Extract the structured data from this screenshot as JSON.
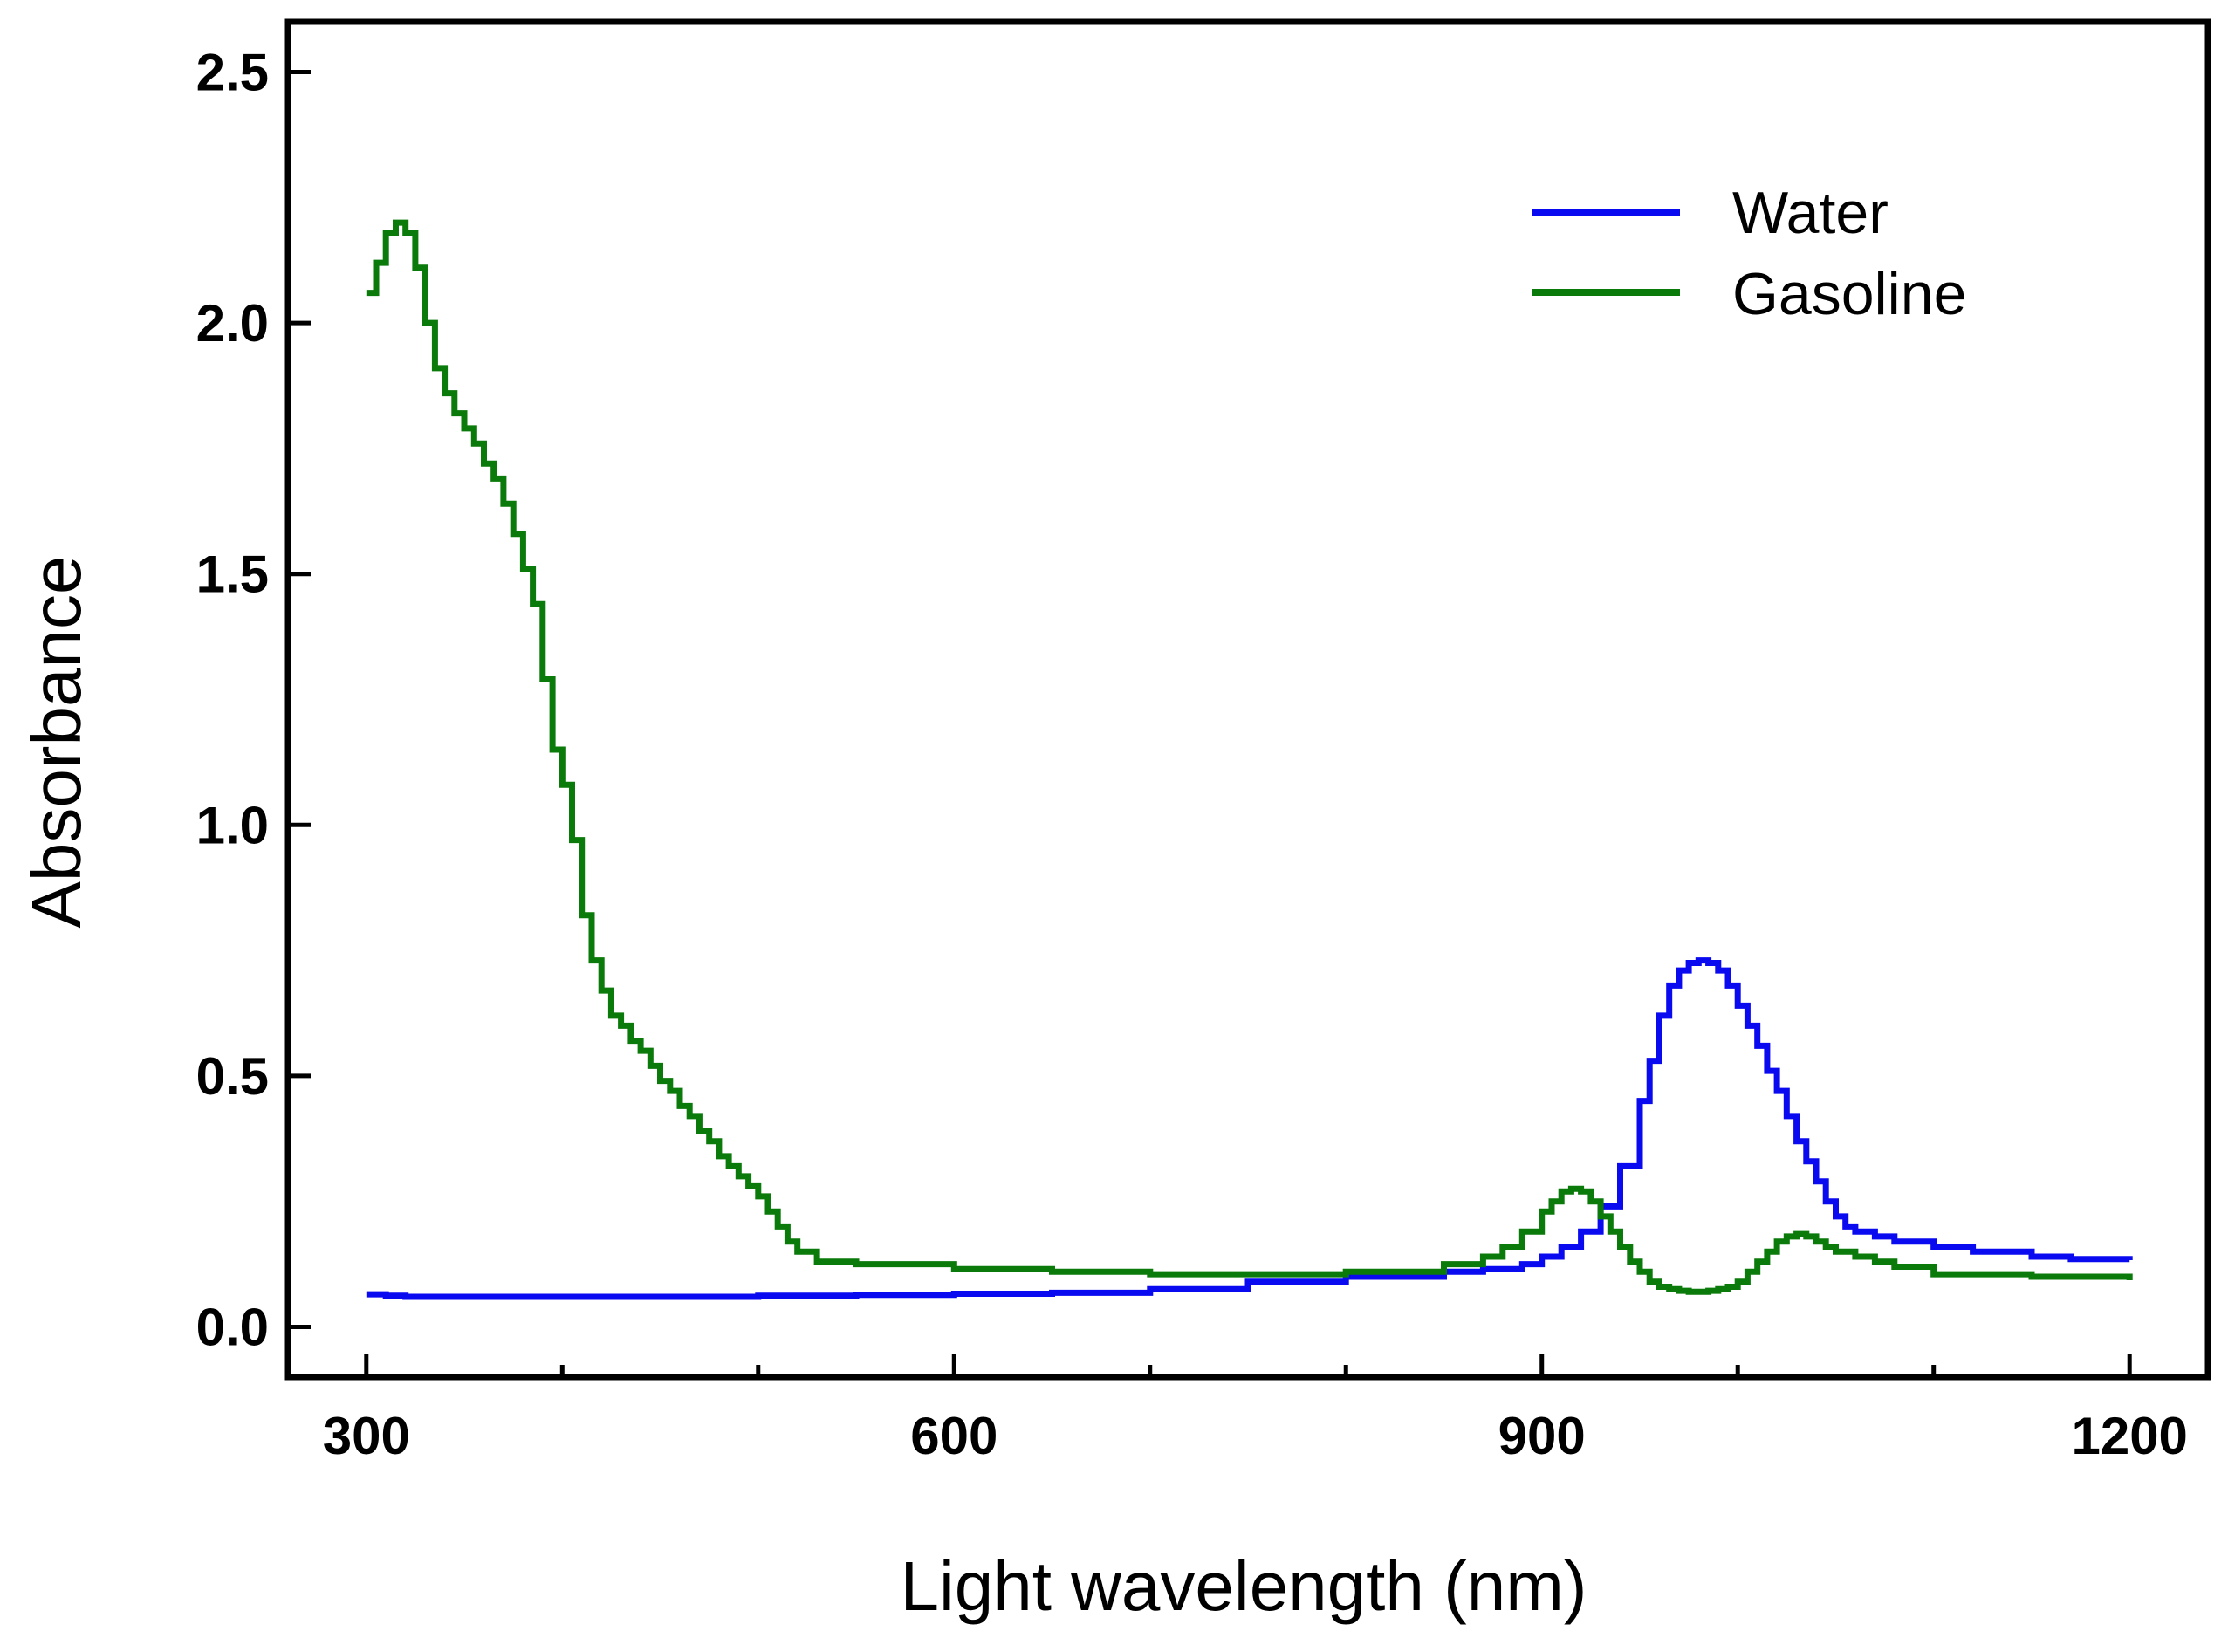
{
  "chart_data": {
    "type": "line",
    "title": "",
    "xlabel": "Light wavelength (nm)",
    "ylabel": "Absorbance",
    "xlim": [
      260,
      1240
    ],
    "ylim": [
      -0.1,
      2.6
    ],
    "xticks": [
      300,
      600,
      900,
      1200
    ],
    "xtick_labels": [
      "300",
      "600",
      "900",
      "1200"
    ],
    "x_minor_ticks": [
      400,
      500,
      700,
      800,
      1000,
      1100
    ],
    "yticks": [
      0.0,
      0.5,
      1.0,
      1.5,
      2.0,
      2.5
    ],
    "ytick_labels": [
      "0.0",
      "0.5",
      "1.0",
      "1.5",
      "2.0",
      "2.5"
    ],
    "grid": false,
    "legend_position": "top-right",
    "series": [
      {
        "name": "Water",
        "color": "#0a0af0",
        "x": [
          300,
          310,
          320,
          350,
          400,
          450,
          500,
          550,
          600,
          650,
          700,
          750,
          800,
          850,
          870,
          890,
          900,
          910,
          920,
          930,
          940,
          950,
          955,
          960,
          965,
          970,
          975,
          980,
          985,
          990,
          995,
          1000,
          1005,
          1010,
          1015,
          1020,
          1025,
          1030,
          1035,
          1040,
          1045,
          1050,
          1055,
          1060,
          1070,
          1080,
          1100,
          1120,
          1150,
          1170,
          1200
        ],
        "values": [
          0.065,
          0.062,
          0.06,
          0.06,
          0.06,
          0.06,
          0.062,
          0.064,
          0.066,
          0.068,
          0.075,
          0.09,
          0.1,
          0.11,
          0.115,
          0.125,
          0.14,
          0.16,
          0.19,
          0.24,
          0.32,
          0.45,
          0.53,
          0.62,
          0.68,
          0.71,
          0.725,
          0.73,
          0.725,
          0.71,
          0.68,
          0.64,
          0.6,
          0.56,
          0.51,
          0.47,
          0.42,
          0.37,
          0.33,
          0.29,
          0.25,
          0.22,
          0.2,
          0.19,
          0.18,
          0.17,
          0.16,
          0.15,
          0.14,
          0.135,
          0.133
        ]
      },
      {
        "name": "Gasoline",
        "color": "#0a7a0a",
        "x": [
          300,
          305,
          310,
          315,
          320,
          325,
          330,
          335,
          340,
          345,
          350,
          355,
          360,
          365,
          370,
          375,
          380,
          385,
          390,
          395,
          400,
          405,
          410,
          415,
          420,
          425,
          430,
          435,
          440,
          445,
          450,
          455,
          460,
          465,
          470,
          475,
          480,
          485,
          490,
          495,
          500,
          505,
          510,
          515,
          520,
          530,
          550,
          600,
          650,
          700,
          750,
          800,
          850,
          870,
          880,
          890,
          900,
          905,
          910,
          915,
          920,
          925,
          930,
          935,
          940,
          945,
          950,
          955,
          960,
          965,
          970,
          975,
          980,
          985,
          990,
          995,
          1000,
          1005,
          1010,
          1015,
          1020,
          1025,
          1030,
          1035,
          1040,
          1045,
          1050,
          1060,
          1070,
          1080,
          1100,
          1150,
          1200
        ],
        "values": [
          2.06,
          2.12,
          2.18,
          2.2,
          2.18,
          2.11,
          2.0,
          1.91,
          1.86,
          1.82,
          1.79,
          1.76,
          1.72,
          1.69,
          1.64,
          1.58,
          1.51,
          1.44,
          1.29,
          1.15,
          1.08,
          0.97,
          0.82,
          0.73,
          0.67,
          0.62,
          0.6,
          0.57,
          0.55,
          0.52,
          0.49,
          0.47,
          0.44,
          0.42,
          0.39,
          0.37,
          0.34,
          0.32,
          0.3,
          0.28,
          0.26,
          0.23,
          0.2,
          0.17,
          0.15,
          0.13,
          0.125,
          0.115,
          0.11,
          0.105,
          0.105,
          0.11,
          0.125,
          0.14,
          0.16,
          0.19,
          0.23,
          0.25,
          0.27,
          0.275,
          0.27,
          0.25,
          0.22,
          0.19,
          0.16,
          0.13,
          0.11,
          0.09,
          0.08,
          0.075,
          0.072,
          0.07,
          0.07,
          0.072,
          0.075,
          0.08,
          0.09,
          0.11,
          0.13,
          0.15,
          0.17,
          0.18,
          0.185,
          0.18,
          0.17,
          0.16,
          0.15,
          0.14,
          0.13,
          0.12,
          0.105,
          0.1,
          0.093
        ]
      }
    ]
  }
}
